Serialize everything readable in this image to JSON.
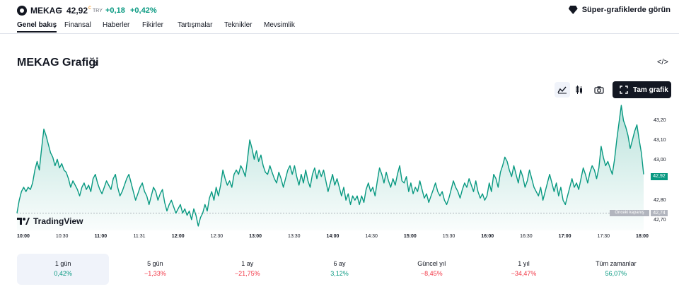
{
  "header": {
    "symbol": "MEKAG",
    "equals": "=",
    "price": "42,92",
    "price_superscript": "c",
    "currency": "TRY",
    "change": "+0,18",
    "change_percent": "+0,42%",
    "super_charts_label": "Süper-grafiklerde görün"
  },
  "tabs": [
    "Genel bakış",
    "Finansal",
    "Haberler",
    "Fikirler",
    "Tartışmalar",
    "Teknikler",
    "Mevsimlik"
  ],
  "section": {
    "title": "MEKAG Grafiği",
    "chevron": "›",
    "embed_icon": "</>"
  },
  "toolbar": {
    "full_chart_label": "Tam grafik"
  },
  "chart_labels": {
    "previous_close_label": "Önceki kapanış",
    "previous_close_value": "42,74",
    "current_value": "42,92",
    "brand": "TradingView"
  },
  "chart_data": {
    "type": "area",
    "title": "MEKAG Grafiği",
    "ylim": [
      42.66,
      43.27
    ],
    "y_ticks": [
      "43,20",
      "43,10",
      "43,00",
      "42,80",
      "42,70"
    ],
    "x_ticks": [
      "10:00",
      "10:30",
      "11:00",
      "11:31",
      "12:00",
      "12:30",
      "13:00",
      "13:30",
      "14:00",
      "14:30",
      "15:00",
      "15:30",
      "16:00",
      "16:30",
      "17:00",
      "17:30",
      "18:00"
    ],
    "x_ticks_bold": [
      "10:00",
      "11:00",
      "12:00",
      "13:00",
      "14:00",
      "15:00",
      "16:00",
      "17:00",
      "18:00"
    ],
    "previous_close": 42.74,
    "last": 42.92,
    "series": [
      {
        "values": [
          42.74,
          42.8,
          42.84,
          42.86,
          42.84,
          42.86,
          42.85,
          42.88,
          42.94,
          42.98,
          42.94,
          43.04,
          43.13,
          43.1,
          43.06,
          43.02,
          43.0,
          42.96,
          42.99,
          42.95,
          42.97,
          42.94,
          42.93,
          42.9,
          42.86,
          42.89,
          42.87,
          42.85,
          42.82,
          42.86,
          42.88,
          42.85,
          42.87,
          42.84,
          42.9,
          42.92,
          42.88,
          42.85,
          42.83,
          42.86,
          42.89,
          42.87,
          42.85,
          42.9,
          42.92,
          42.86,
          42.82,
          42.84,
          42.87,
          42.9,
          42.92,
          42.88,
          42.84,
          42.8,
          42.83,
          42.86,
          42.88,
          42.84,
          42.82,
          42.78,
          42.82,
          42.86,
          42.84,
          42.8,
          42.83,
          42.85,
          42.79,
          42.75,
          42.78,
          42.8,
          42.77,
          42.74,
          42.76,
          42.78,
          42.74,
          42.76,
          42.73,
          42.75,
          42.71,
          42.76,
          42.73,
          42.68,
          42.72,
          42.74,
          42.78,
          42.75,
          42.81,
          42.84,
          42.8,
          42.86,
          42.82,
          42.87,
          42.94,
          42.9,
          42.87,
          42.89,
          42.86,
          42.92,
          42.94,
          42.92,
          42.96,
          42.94,
          42.91,
          42.99,
          43.08,
          43.04,
          42.99,
          43.03,
          42.98,
          43.01,
          42.96,
          42.93,
          42.92,
          42.96,
          42.93,
          42.9,
          42.88,
          42.93,
          42.9,
          42.86,
          42.9,
          42.94,
          42.96,
          42.92,
          42.96,
          42.91,
          42.87,
          42.92,
          42.88,
          42.94,
          42.89,
          42.86,
          42.92,
          42.95,
          42.9,
          42.94,
          42.91,
          42.94,
          42.89,
          42.84,
          42.88,
          42.92,
          42.87,
          42.9,
          42.86,
          42.82,
          42.86,
          42.8,
          42.83,
          42.78,
          42.82,
          42.8,
          42.82,
          42.78,
          42.82,
          42.79,
          42.85,
          42.88,
          42.84,
          42.86,
          42.82,
          42.89,
          42.95,
          42.92,
          42.88,
          42.93,
          42.89,
          42.86,
          42.9,
          42.87,
          42.92,
          42.96,
          42.89,
          42.88,
          42.91,
          42.84,
          42.88,
          42.83,
          42.86,
          42.84,
          42.89,
          42.85,
          42.81,
          42.83,
          42.79,
          42.82,
          42.85,
          42.88,
          42.84,
          42.82,
          42.84,
          42.8,
          42.78,
          42.81,
          42.85,
          42.89,
          42.86,
          42.84,
          42.81,
          42.85,
          42.88,
          42.86,
          42.9,
          42.87,
          42.84,
          42.89,
          42.84,
          42.81,
          42.83,
          42.8,
          42.82,
          42.88,
          42.84,
          42.92,
          42.9,
          42.86,
          42.93,
          42.96,
          43.0,
          42.98,
          42.94,
          42.91,
          42.96,
          42.92,
          42.88,
          42.94,
          42.91,
          42.86,
          42.89,
          42.94,
          42.9,
          42.86,
          42.84,
          42.82,
          42.86,
          42.8,
          42.84,
          42.88,
          42.92,
          42.88,
          42.84,
          42.88,
          42.82,
          42.86,
          42.8,
          42.78,
          42.82,
          42.86,
          42.9,
          42.86,
          42.88,
          42.85,
          42.9,
          42.95,
          42.92,
          42.88,
          42.93,
          42.96,
          42.94,
          42.9,
          42.95,
          43.05,
          43.0,
          42.96,
          42.98,
          42.95,
          42.92,
          42.99,
          43.08,
          43.16,
          43.24,
          43.17,
          43.14,
          43.1,
          43.04,
          43.08,
          43.12,
          43.15,
          43.08,
          43.02,
          42.92
        ]
      }
    ]
  },
  "periods": [
    {
      "label": "1 gün",
      "value": "0,42%",
      "dir": "pos"
    },
    {
      "label": "5 gün",
      "value": "−1,33%",
      "dir": "neg"
    },
    {
      "label": "1 ay",
      "value": "−21,75%",
      "dir": "neg"
    },
    {
      "label": "6 ay",
      "value": "3,12%",
      "dir": "pos"
    },
    {
      "label": "Güncel yıl",
      "value": "−8,45%",
      "dir": "neg"
    },
    {
      "label": "1 yıl",
      "value": "−34,47%",
      "dir": "neg"
    },
    {
      "label": "Tüm zamanlar",
      "value": "56,07%",
      "dir": "pos"
    }
  ],
  "colors": {
    "line": "#089981",
    "positive": "#089981",
    "negative": "#f23645",
    "previous_close": "#b2b5be",
    "button_dark": "#131722"
  },
  "icons": [
    "mekag-logo-icon",
    "diamond-icon",
    "line-chart-icon",
    "candles-icon",
    "camera-icon",
    "fullscreen-icon",
    "tradingview-logo-icon"
  ]
}
